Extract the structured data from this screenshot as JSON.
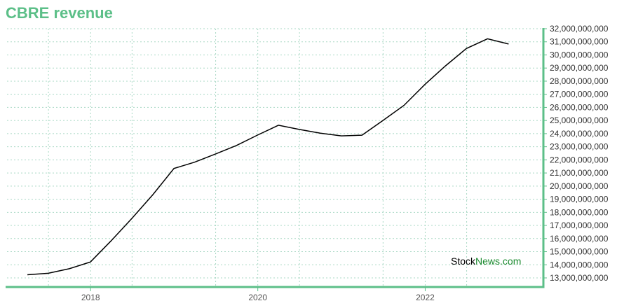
{
  "header": {
    "title": "CBRE revenue"
  },
  "watermark": {
    "part1": "Stock",
    "part2": "News.com"
  },
  "colors": {
    "accent": "#5cbf88",
    "line": "#000000",
    "grid": "#a8d8c4",
    "watermark_accent": "#1a8a2e"
  },
  "chart_data": {
    "type": "line",
    "title": "CBRE revenue",
    "xlabel": "",
    "ylabel": "",
    "x_ticks": [
      "2018",
      "2020",
      "2022"
    ],
    "y_ticks": [
      "13,000,000,000",
      "14,000,000,000",
      "15,000,000,000",
      "16,000,000,000",
      "17,000,000,000",
      "18,000,000,000",
      "19,000,000,000",
      "20,000,000,000",
      "21,000,000,000",
      "22,000,000,000",
      "23,000,000,000",
      "24,000,000,000",
      "25,000,000,000",
      "26,000,000,000",
      "27,000,000,000",
      "28,000,000,000",
      "29,000,000,000",
      "30,000,000,000",
      "31,000,000,000",
      "32,000,000,000"
    ],
    "ylim": [
      13000000000,
      32000000000
    ],
    "xlim": [
      "2017-01-01",
      "2023-06-01"
    ],
    "grid": true,
    "y_axis_side": "right",
    "series": [
      {
        "x": [
          "2017-03-31",
          "2017-06-30",
          "2017-09-30",
          "2017-12-31",
          "2018-03-31",
          "2018-06-30",
          "2018-09-30",
          "2018-12-31",
          "2019-03-31",
          "2019-06-30",
          "2019-09-30",
          "2019-12-31",
          "2020-03-31",
          "2020-06-30",
          "2020-09-30",
          "2020-12-31",
          "2021-03-31",
          "2021-06-30",
          "2021-09-30",
          "2021-12-31",
          "2022-03-31",
          "2022-06-30",
          "2022-09-30",
          "2022-12-31"
        ],
        "values": [
          13240000000,
          13350000000,
          13700000000,
          14210000000,
          15820000000,
          17530000000,
          19350000000,
          21340000000,
          21820000000,
          22440000000,
          23100000000,
          23890000000,
          24640000000,
          24320000000,
          24030000000,
          23830000000,
          23880000000,
          24990000000,
          26150000000,
          27750000000,
          29170000000,
          30490000000,
          31230000000,
          30830000000
        ]
      }
    ]
  }
}
